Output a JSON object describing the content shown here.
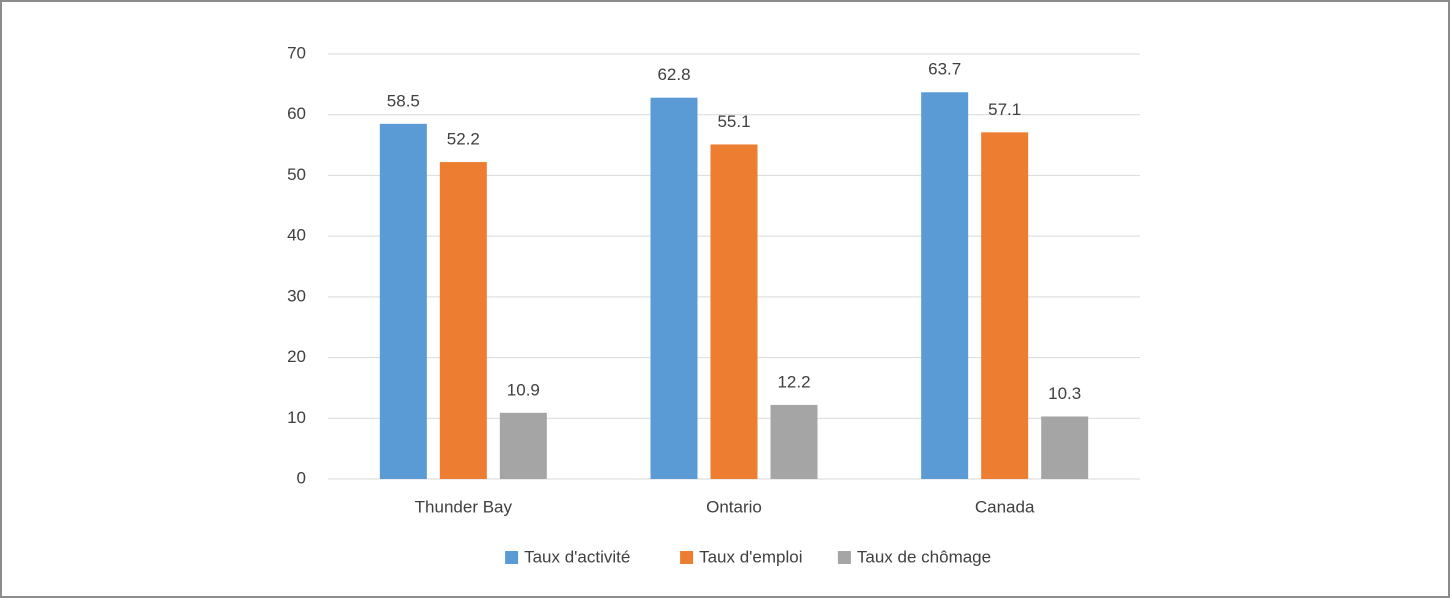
{
  "chart_data": {
    "type": "bar",
    "categories": [
      "Thunder Bay",
      "Ontario",
      "Canada"
    ],
    "series": [
      {
        "name": "Taux d'activité",
        "color": "#5b9bd5",
        "values": [
          58.5,
          62.8,
          63.7
        ]
      },
      {
        "name": "Taux d'emploi",
        "color": "#ed7d31",
        "values": [
          52.2,
          55.1,
          57.1
        ]
      },
      {
        "name": "Taux de chômage",
        "color": "#a5a5a5",
        "values": [
          10.9,
          12.2,
          10.3
        ]
      }
    ],
    "ylim": [
      0,
      70
    ],
    "yticks": [
      0,
      10,
      20,
      30,
      40,
      50,
      60,
      70
    ],
    "grid": true,
    "legend": "bottom"
  }
}
